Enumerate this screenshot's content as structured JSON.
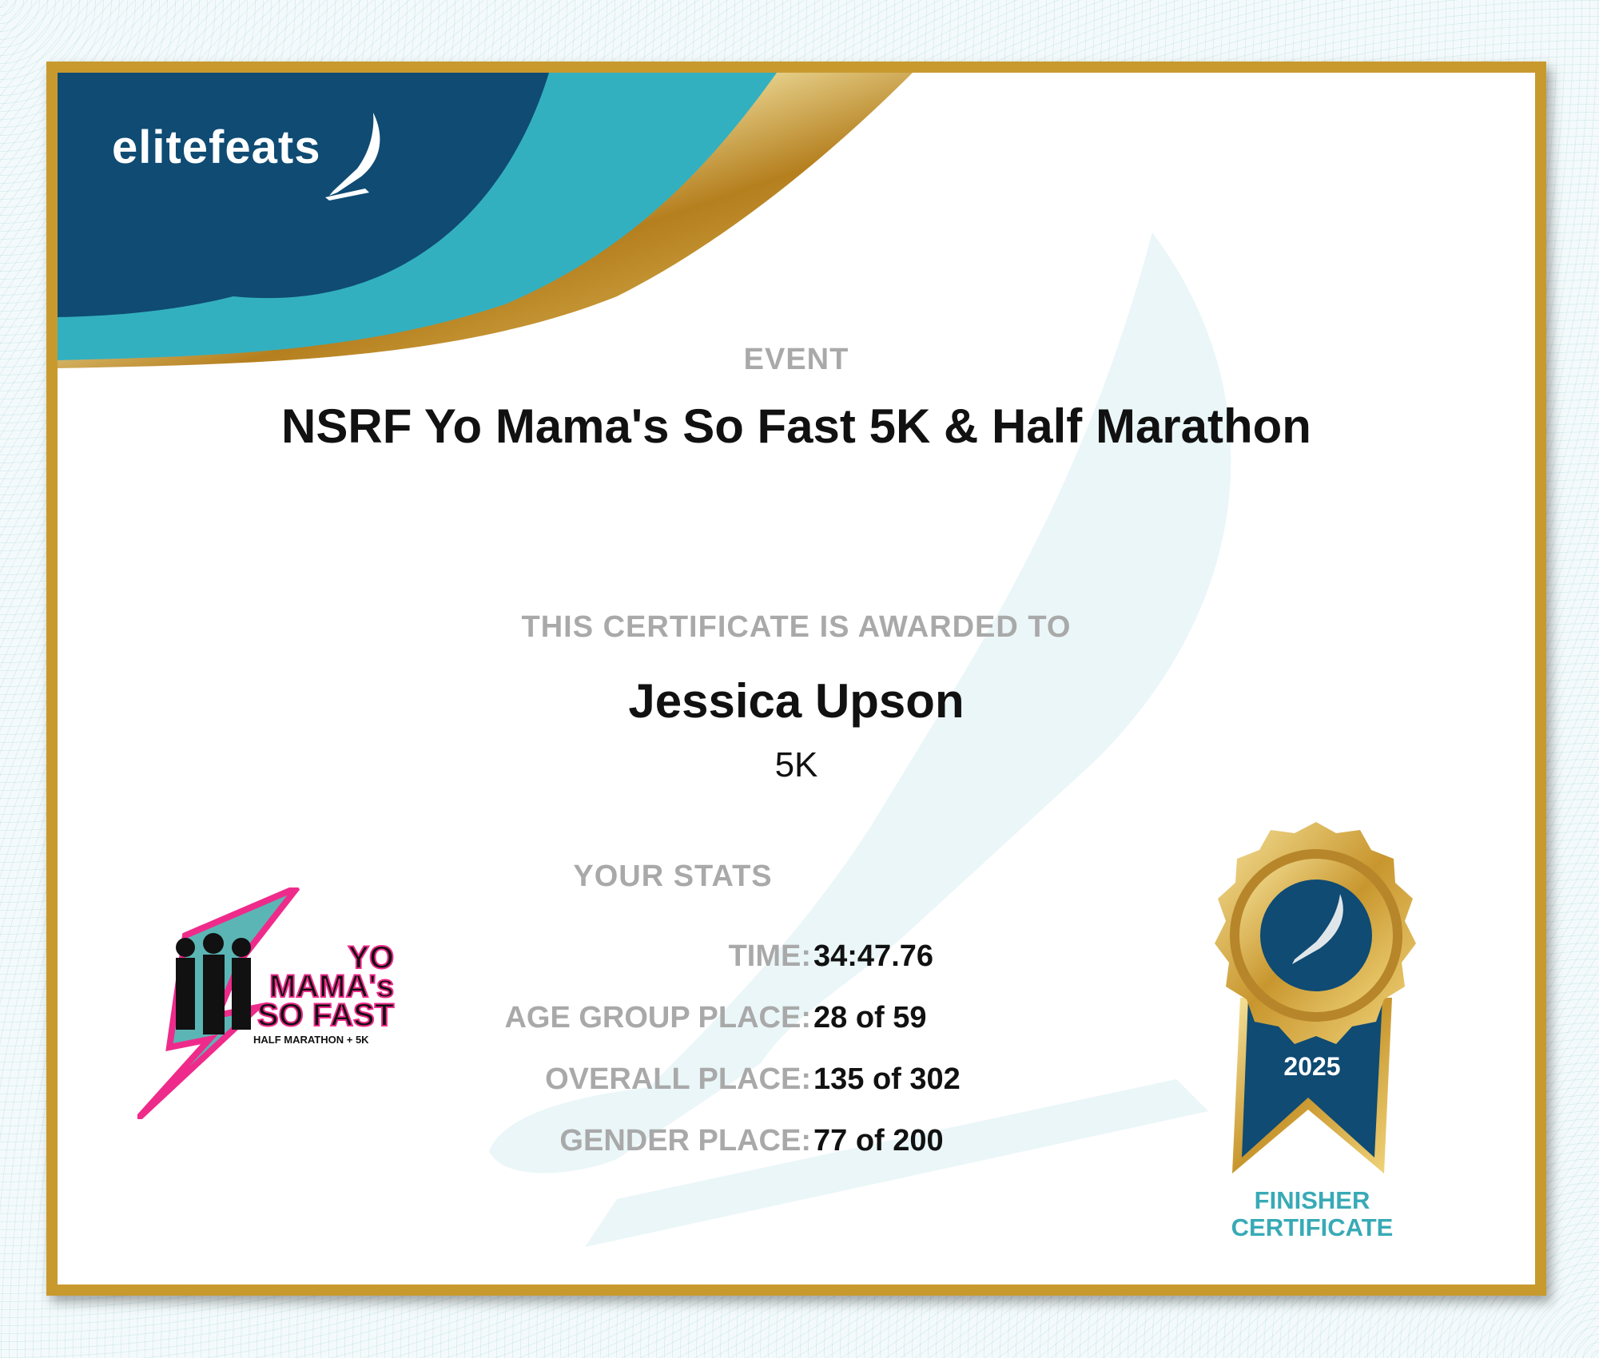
{
  "brand": {
    "logo_text": "elitefeats",
    "colors": {
      "navy": "#0f4b73",
      "teal": "#33b0c0",
      "gold": "#c89a2e"
    }
  },
  "event": {
    "label": "EVENT",
    "name": "NSRF Yo Mama's So Fast 5K & Half Marathon"
  },
  "award": {
    "label": "THIS CERTIFICATE IS AWARDED TO",
    "recipient": "Jessica Upson",
    "race": "5K"
  },
  "stats": {
    "label": "YOUR STATS",
    "rows": [
      {
        "label": "TIME:",
        "value": "34:47.76"
      },
      {
        "label": "AGE GROUP PLACE:",
        "value": "28 of 59"
      },
      {
        "label": "OVERALL PLACE:",
        "value": "135 of 302"
      },
      {
        "label": "GENDER PLACE:",
        "value": "77 of 200"
      }
    ]
  },
  "event_logo": {
    "text_line1": "YO",
    "text_line2": "MAMA's",
    "text_line3": "SO FAST",
    "text_line4": "HALF MARATHON + 5K"
  },
  "badge": {
    "year": "2025",
    "caption_line1": "FINISHER",
    "caption_line2": "CERTIFICATE",
    "icon": "winged-foot-icon"
  }
}
